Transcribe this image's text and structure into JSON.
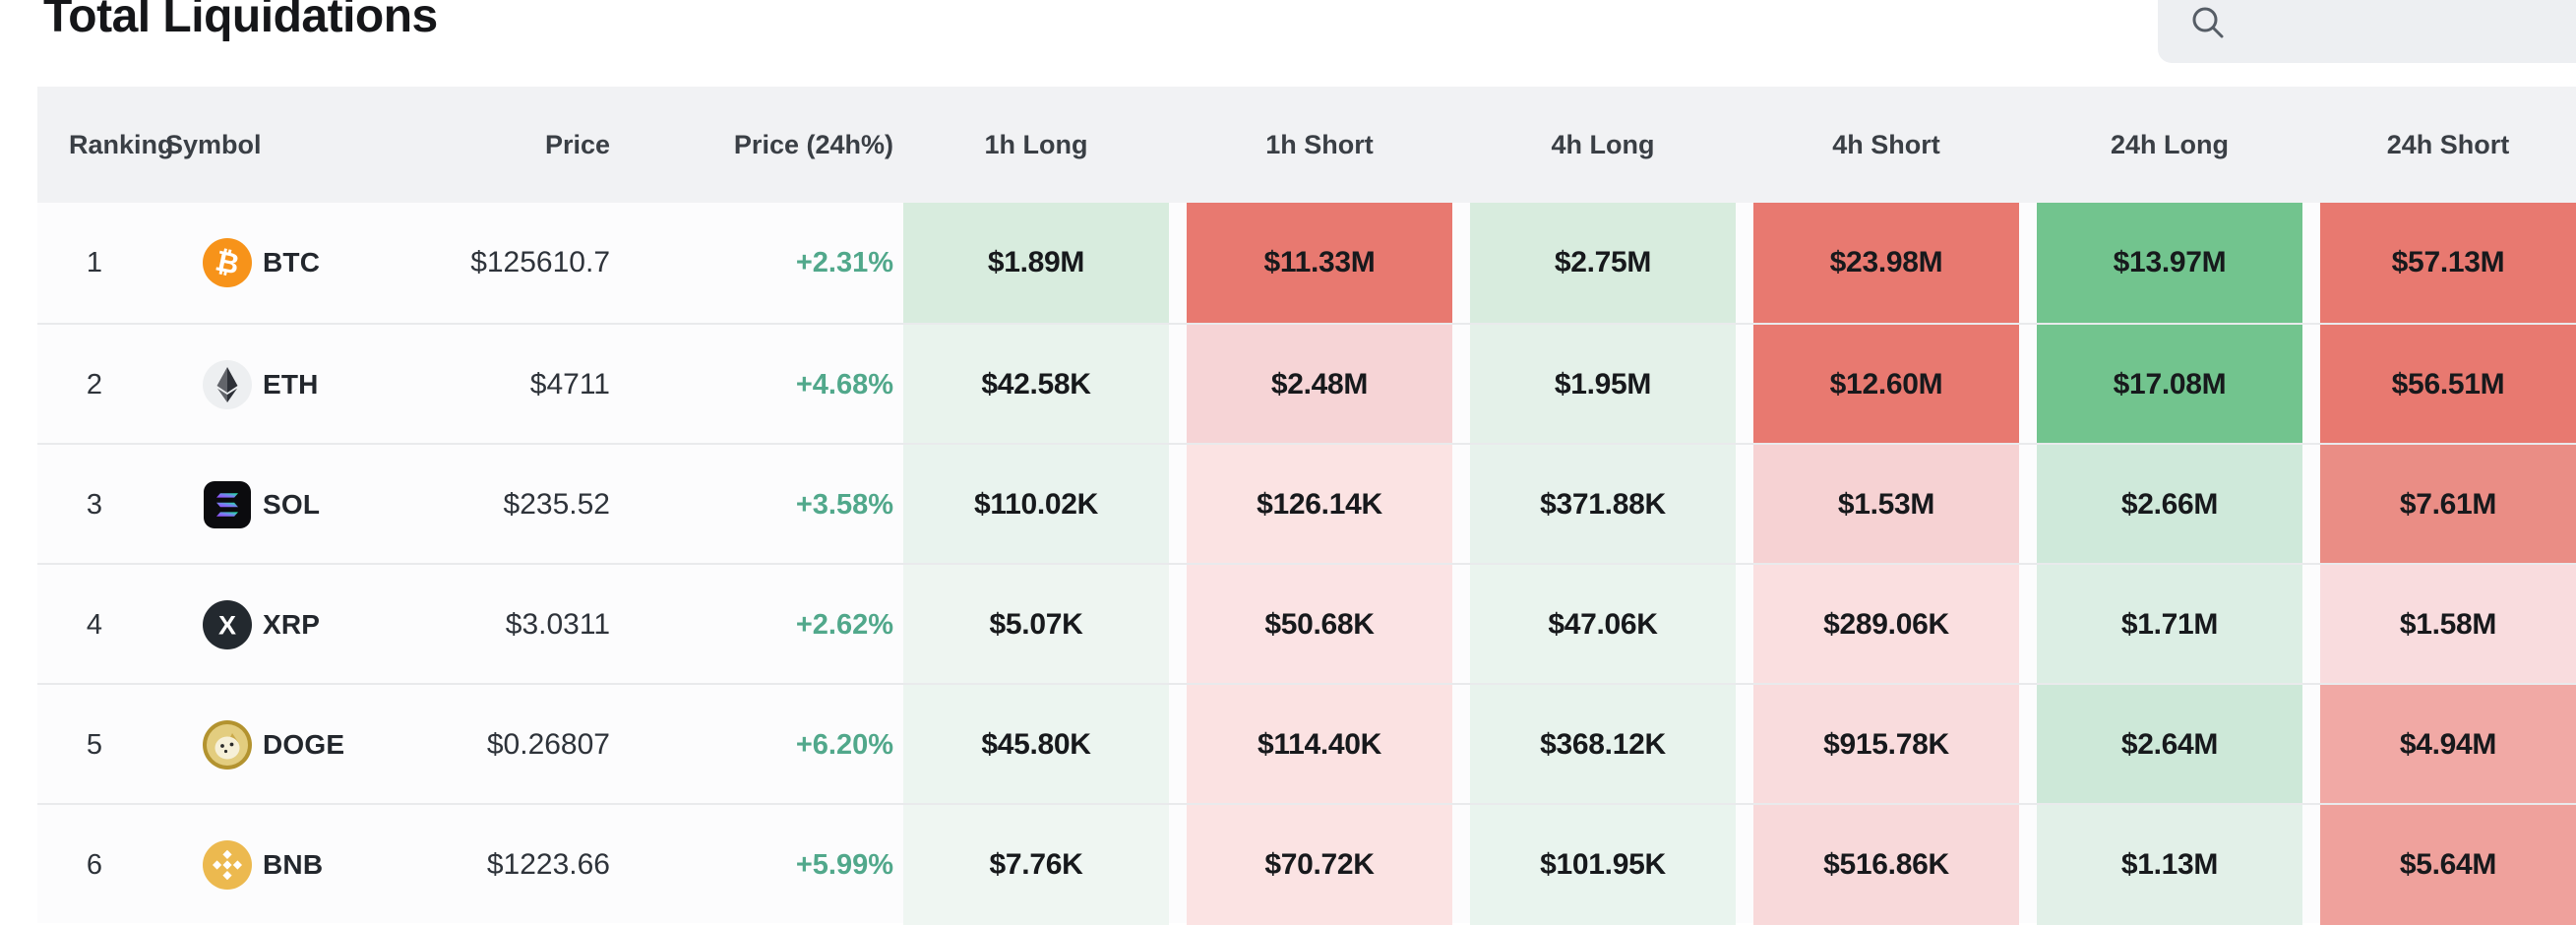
{
  "page": {
    "title": "Total Liquidations"
  },
  "search": {
    "icon": "search-icon",
    "value": "",
    "placeholder": ""
  },
  "colors": {
    "accent_long_strong": "#72c48e",
    "accent_short_strong": "#e87970",
    "change_positive": "#51a88b",
    "header_bg": "#f1f2f4",
    "search_bg": "#edeff2"
  },
  "table": {
    "headers": [
      "Ranking",
      "Symbol",
      "Price",
      "Price (24h%)",
      "1h Long",
      "1h Short",
      "4h Long",
      "4h Short",
      "24h Long",
      "24h Short"
    ],
    "rows": [
      {
        "rank": "1",
        "symbol": "BTC",
        "icon": "btc-icon",
        "price": "$125610.7",
        "change": "+2.31%",
        "cells": [
          {
            "col": "1h Long",
            "text": "$1.89M",
            "bg": "#d8ecde"
          },
          {
            "col": "1h Short",
            "text": "$11.33M",
            "bg": "#e87970"
          },
          {
            "col": "4h Long",
            "text": "$2.75M",
            "bg": "#d8ecde"
          },
          {
            "col": "4h Short",
            "text": "$23.98M",
            "bg": "#e87970"
          },
          {
            "col": "24h Long",
            "text": "$13.97M",
            "bg": "#72c48e"
          },
          {
            "col": "24h Short",
            "text": "$57.13M",
            "bg": "#e87970"
          }
        ]
      },
      {
        "rank": "2",
        "symbol": "ETH",
        "icon": "eth-icon",
        "price": "$4711",
        "change": "+4.68%",
        "cells": [
          {
            "col": "1h Long",
            "text": "$42.58K",
            "bg": "#e9f3ed"
          },
          {
            "col": "1h Short",
            "text": "$2.48M",
            "bg": "#f6d4d6"
          },
          {
            "col": "4h Long",
            "text": "$1.95M",
            "bg": "#e4f1e9"
          },
          {
            "col": "4h Short",
            "text": "$12.60M",
            "bg": "#e87970"
          },
          {
            "col": "24h Long",
            "text": "$17.08M",
            "bg": "#72c48e"
          },
          {
            "col": "24h Short",
            "text": "$56.51M",
            "bg": "#e87970"
          }
        ]
      },
      {
        "rank": "3",
        "symbol": "SOL",
        "icon": "sol-icon",
        "price": "$235.52",
        "change": "+3.58%",
        "cells": [
          {
            "col": "1h Long",
            "text": "$110.02K",
            "bg": "#e9f3ee"
          },
          {
            "col": "1h Short",
            "text": "$126.14K",
            "bg": "#fbe3e3"
          },
          {
            "col": "4h Long",
            "text": "$371.88K",
            "bg": "#e7f2ec"
          },
          {
            "col": "4h Short",
            "text": "$1.53M",
            "bg": "#f6d2d3"
          },
          {
            "col": "24h Long",
            "text": "$2.66M",
            "bg": "#cfe9da"
          },
          {
            "col": "24h Short",
            "text": "$7.61M",
            "bg": "#ea8d85"
          }
        ]
      },
      {
        "rank": "4",
        "symbol": "XRP",
        "icon": "xrp-icon",
        "price": "$3.0311",
        "change": "+2.62%",
        "cells": [
          {
            "col": "1h Long",
            "text": "$5.07K",
            "bg": "#eef5f1"
          },
          {
            "col": "1h Short",
            "text": "$50.68K",
            "bg": "#fbe3e4"
          },
          {
            "col": "4h Long",
            "text": "$47.06K",
            "bg": "#eaf4ee"
          },
          {
            "col": "4h Short",
            "text": "$289.06K",
            "bg": "#fadfe0"
          },
          {
            "col": "24h Long",
            "text": "$1.71M",
            "bg": "#dceee4"
          },
          {
            "col": "24h Short",
            "text": "$1.58M",
            "bg": "#f9dcde"
          }
        ]
      },
      {
        "rank": "5",
        "symbol": "DOGE",
        "icon": "doge-icon",
        "price": "$0.26807",
        "change": "+6.20%",
        "cells": [
          {
            "col": "1h Long",
            "text": "$45.80K",
            "bg": "#ecf5f0"
          },
          {
            "col": "1h Short",
            "text": "$114.40K",
            "bg": "#fbe2e2"
          },
          {
            "col": "4h Long",
            "text": "$368.12K",
            "bg": "#e8f3ed"
          },
          {
            "col": "4h Short",
            "text": "$915.78K",
            "bg": "#f9dcdd"
          },
          {
            "col": "24h Long",
            "text": "$2.64M",
            "bg": "#cde8d8"
          },
          {
            "col": "24h Short",
            "text": "$4.94M",
            "bg": "#f1a9a5"
          }
        ]
      },
      {
        "rank": "6",
        "symbol": "BNB",
        "icon": "bnb-icon",
        "price": "$1223.66",
        "change": "+5.99%",
        "cells": [
          {
            "col": "1h Long",
            "text": "$7.76K",
            "bg": "#eff6f2"
          },
          {
            "col": "1h Short",
            "text": "$70.72K",
            "bg": "#fbe3e3"
          },
          {
            "col": "4h Long",
            "text": "$101.95K",
            "bg": "#e9f4ee"
          },
          {
            "col": "4h Short",
            "text": "$516.86K",
            "bg": "#f8d9da"
          },
          {
            "col": "24h Long",
            "text": "$1.13M",
            "bg": "#e2f0e8"
          },
          {
            "col": "24h Short",
            "text": "$5.64M",
            "bg": "#efa19c"
          }
        ]
      }
    ]
  }
}
